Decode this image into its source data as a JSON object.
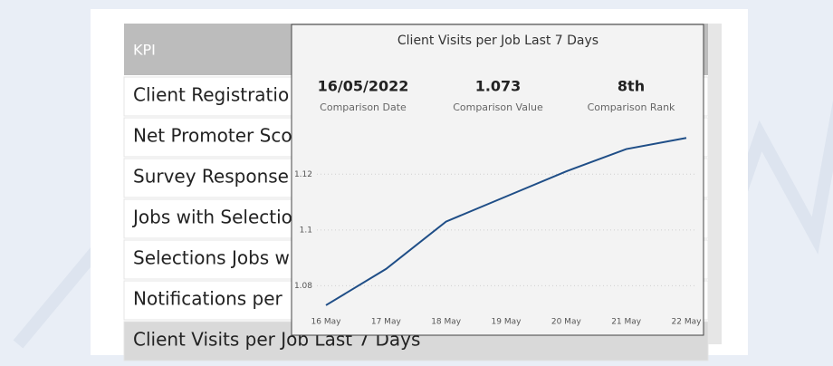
{
  "table": {
    "header": "KPI",
    "rows": [
      "Client Registratio",
      "Net Promoter Sco",
      "Survey Response",
      "Jobs with Selectio",
      "Selections Jobs w",
      "Notifications per",
      "Client Visits per Job Last 7 Days"
    ]
  },
  "tooltip": {
    "cards": [
      {
        "value": "16/05/2022",
        "label": "Comparison Date"
      },
      {
        "value": "1.073",
        "label": "Comparison Value"
      },
      {
        "value": "8th",
        "label": "Comparison Rank"
      }
    ]
  },
  "chart_data": {
    "type": "line",
    "title": "Client Visits per Job Last 7 Days",
    "categories": [
      "16 May",
      "17 May",
      "18 May",
      "19 May",
      "20 May",
      "21 May",
      "22 May"
    ],
    "series": [
      {
        "name": "Client Visits per Job",
        "color": "#1f4e87",
        "values": [
          1.073,
          1.086,
          1.103,
          1.112,
          1.121,
          1.129,
          1.133
        ]
      }
    ],
    "ylim": [
      1.072,
      1.136
    ],
    "yticks": [
      1.08,
      1.1,
      1.12
    ],
    "grid": true
  }
}
